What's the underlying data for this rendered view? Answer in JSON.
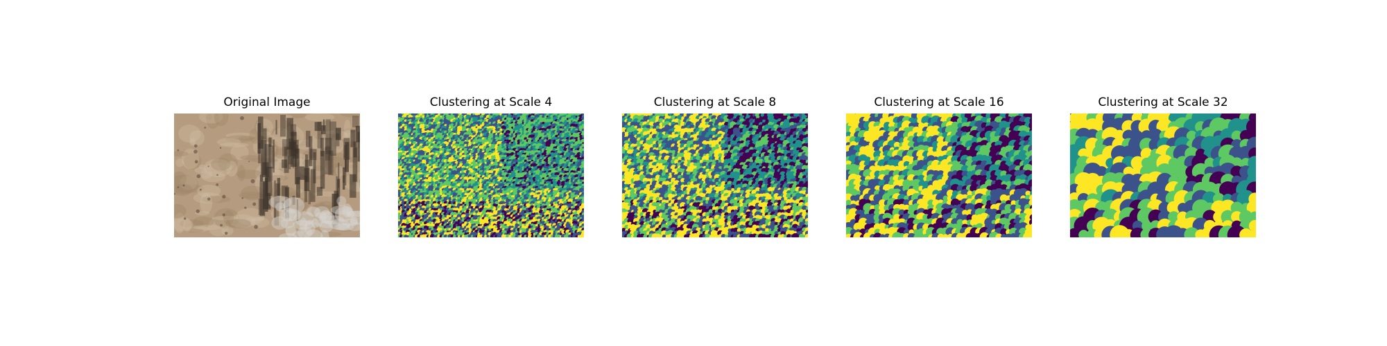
{
  "panels": [
    {
      "title": "Original Image",
      "kind": "photo"
    },
    {
      "title": "Clustering at Scale 4",
      "kind": "cluster",
      "scale": 4
    },
    {
      "title": "Clustering at Scale 8",
      "kind": "cluster",
      "scale": 8
    },
    {
      "title": "Clustering at Scale 16",
      "kind": "cluster",
      "scale": 16
    },
    {
      "title": "Clustering at Scale 32",
      "kind": "cluster",
      "scale": 32
    }
  ],
  "colormap": {
    "name": "viridis",
    "clusters": [
      "#440154",
      "#3b528b",
      "#21918c",
      "#5ec962",
      "#fde725"
    ]
  },
  "photo_colors": {
    "ground": "#b59b7f",
    "light": "#d1bfa6",
    "shadow": "#3a3128",
    "snow": "#d8d4d0"
  }
}
